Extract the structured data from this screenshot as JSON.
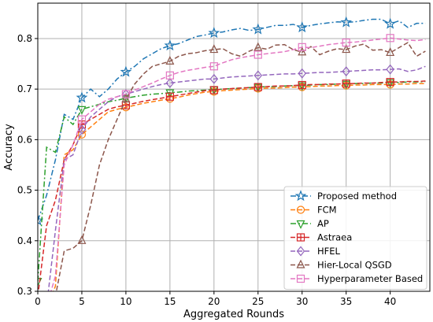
{
  "chart_data": {
    "type": "line",
    "xlabel": "Aggregated Rounds",
    "ylabel": "Accuracy",
    "xlim": [
      0,
      44.5
    ],
    "ylim": [
      0.3,
      0.87
    ],
    "xticks": [
      0,
      5,
      10,
      15,
      20,
      25,
      30,
      35,
      40
    ],
    "yticks": [
      0.3,
      0.4,
      0.5,
      0.6,
      0.7,
      0.8
    ],
    "grid": true,
    "legend_position": "lower-right",
    "series": [
      {
        "name": "Proposed method",
        "color": "#1f77b4",
        "dash": "dashdot",
        "marker": "star",
        "x": [
          0,
          1,
          2,
          3,
          4,
          5,
          6,
          7,
          8,
          9,
          10,
          11,
          12,
          13,
          14,
          15,
          16,
          17,
          18,
          19,
          20,
          21,
          22,
          23,
          24,
          25,
          26,
          27,
          28,
          29,
          30,
          31,
          32,
          33,
          34,
          35,
          36,
          37,
          38,
          39,
          40,
          41,
          42,
          43,
          44
        ],
        "y": [
          0.44,
          0.49,
          0.56,
          0.65,
          0.64,
          0.683,
          0.7,
          0.685,
          0.7,
          0.72,
          0.734,
          0.745,
          0.76,
          0.77,
          0.78,
          0.786,
          0.79,
          0.797,
          0.804,
          0.807,
          0.811,
          0.813,
          0.817,
          0.82,
          0.816,
          0.818,
          0.822,
          0.826,
          0.826,
          0.828,
          0.822,
          0.826,
          0.829,
          0.831,
          0.833,
          0.832,
          0.833,
          0.836,
          0.838,
          0.838,
          0.829,
          0.835,
          0.822,
          0.83,
          0.83
        ]
      },
      {
        "name": "FCM",
        "color": "#ff7f0e",
        "dash": "dashed",
        "marker": "circle",
        "x": [
          0,
          1,
          2,
          3,
          4,
          5,
          6,
          7,
          8,
          9,
          10,
          11,
          12,
          13,
          14,
          15,
          16,
          17,
          18,
          19,
          20,
          21,
          22,
          23,
          24,
          25,
          26,
          27,
          28,
          29,
          30,
          31,
          32,
          33,
          34,
          35,
          36,
          37,
          38,
          39,
          40,
          41,
          42,
          43,
          44
        ],
        "y": [
          0.27,
          0.27,
          0.31,
          0.57,
          0.58,
          0.61,
          0.625,
          0.64,
          0.655,
          0.66,
          0.664,
          0.668,
          0.672,
          0.675,
          0.678,
          0.681,
          0.684,
          0.688,
          0.691,
          0.694,
          0.695,
          0.697,
          0.698,
          0.699,
          0.7,
          0.701,
          0.702,
          0.702,
          0.703,
          0.704,
          0.704,
          0.705,
          0.706,
          0.706,
          0.707,
          0.707,
          0.708,
          0.708,
          0.709,
          0.709,
          0.709,
          0.71,
          0.71,
          0.711,
          0.711
        ]
      },
      {
        "name": "AP",
        "color": "#2ca02c",
        "dash": "dashdot",
        "marker": "triangle-down",
        "x": [
          0,
          1,
          2,
          3,
          4,
          5,
          6,
          7,
          8,
          9,
          10,
          11,
          12,
          13,
          14,
          15,
          16,
          17,
          18,
          19,
          20,
          21,
          22,
          23,
          24,
          25,
          26,
          27,
          28,
          29,
          30,
          31,
          32,
          33,
          34,
          35,
          36,
          37,
          38,
          39,
          40,
          41,
          42,
          43,
          44
        ],
        "y": [
          0.32,
          0.585,
          0.575,
          0.645,
          0.63,
          0.66,
          0.665,
          0.67,
          0.675,
          0.678,
          0.682,
          0.685,
          0.688,
          0.69,
          0.691,
          0.693,
          0.694,
          0.696,
          0.697,
          0.698,
          0.699,
          0.7,
          0.701,
          0.702,
          0.703,
          0.704,
          0.705,
          0.705,
          0.706,
          0.707,
          0.707,
          0.708,
          0.709,
          0.709,
          0.71,
          0.71,
          0.711,
          0.711,
          0.712,
          0.712,
          0.713,
          0.713,
          0.714,
          0.714,
          0.715
        ]
      },
      {
        "name": "Astraea",
        "color": "#d62728",
        "dash": "dashed",
        "marker": "plus-square",
        "x": [
          0,
          1,
          2,
          3,
          4,
          5,
          6,
          7,
          8,
          9,
          10,
          11,
          12,
          13,
          14,
          15,
          16,
          17,
          18,
          19,
          20,
          21,
          22,
          23,
          24,
          25,
          26,
          27,
          28,
          29,
          30,
          31,
          32,
          33,
          34,
          35,
          36,
          37,
          38,
          39,
          40,
          41,
          42,
          43,
          44
        ],
        "y": [
          0.29,
          0.43,
          0.48,
          0.56,
          0.59,
          0.63,
          0.64,
          0.65,
          0.66,
          0.665,
          0.668,
          0.672,
          0.676,
          0.679,
          0.682,
          0.685,
          0.688,
          0.691,
          0.694,
          0.697,
          0.698,
          0.7,
          0.701,
          0.702,
          0.703,
          0.704,
          0.705,
          0.706,
          0.706,
          0.707,
          0.708,
          0.709,
          0.709,
          0.71,
          0.71,
          0.711,
          0.711,
          0.712,
          0.712,
          0.713,
          0.714,
          0.714,
          0.715,
          0.715,
          0.716
        ]
      },
      {
        "name": "HFEL",
        "color": "#9467bd",
        "dash": "dashed",
        "marker": "diamond",
        "x": [
          0,
          1,
          2,
          3,
          4,
          5,
          6,
          7,
          8,
          9,
          10,
          11,
          12,
          13,
          14,
          15,
          16,
          17,
          18,
          19,
          20,
          21,
          22,
          23,
          24,
          25,
          26,
          27,
          28,
          29,
          30,
          31,
          32,
          33,
          34,
          35,
          36,
          37,
          38,
          39,
          40,
          41,
          42,
          43,
          44
        ],
        "y": [
          0.27,
          0.27,
          0.42,
          0.56,
          0.57,
          0.62,
          0.645,
          0.66,
          0.675,
          0.685,
          0.69,
          0.695,
          0.7,
          0.705,
          0.709,
          0.712,
          0.714,
          0.716,
          0.718,
          0.72,
          0.72,
          0.722,
          0.724,
          0.725,
          0.726,
          0.727,
          0.728,
          0.729,
          0.73,
          0.73,
          0.731,
          0.732,
          0.733,
          0.733,
          0.734,
          0.735,
          0.736,
          0.737,
          0.738,
          0.738,
          0.739,
          0.74,
          0.735,
          0.738,
          0.745
        ]
      },
      {
        "name": "Hier-Local QSGD",
        "color": "#8c564b",
        "dash": "dashed",
        "marker": "triangle-up",
        "x": [
          0,
          1,
          2,
          3,
          4,
          5,
          6,
          7,
          8,
          9,
          10,
          11,
          12,
          13,
          14,
          15,
          16,
          17,
          18,
          19,
          20,
          21,
          22,
          23,
          24,
          25,
          26,
          27,
          28,
          29,
          30,
          31,
          32,
          33,
          34,
          35,
          36,
          37,
          38,
          39,
          40,
          41,
          42,
          43,
          44
        ],
        "y": [
          0.27,
          0.27,
          0.29,
          0.38,
          0.385,
          0.4,
          0.47,
          0.55,
          0.6,
          0.64,
          0.68,
          0.71,
          0.73,
          0.745,
          0.75,
          0.755,
          0.765,
          0.77,
          0.772,
          0.776,
          0.778,
          0.78,
          0.77,
          0.765,
          0.775,
          0.782,
          0.779,
          0.787,
          0.788,
          0.778,
          0.773,
          0.784,
          0.768,
          0.775,
          0.78,
          0.778,
          0.785,
          0.789,
          0.777,
          0.778,
          0.772,
          0.782,
          0.792,
          0.765,
          0.775
        ]
      },
      {
        "name": "Hyperparameter Based",
        "color": "#e377c2",
        "dash": "dashed",
        "marker": "square",
        "x": [
          0,
          1,
          2,
          3,
          4,
          5,
          6,
          7,
          8,
          9,
          10,
          11,
          12,
          13,
          14,
          15,
          16,
          17,
          18,
          19,
          20,
          21,
          22,
          23,
          24,
          25,
          26,
          27,
          28,
          29,
          30,
          31,
          32,
          33,
          34,
          35,
          36,
          37,
          38,
          39,
          40,
          41,
          42,
          43,
          44
        ],
        "y": [
          0.27,
          0.27,
          0.33,
          0.55,
          0.59,
          0.64,
          0.655,
          0.67,
          0.68,
          0.685,
          0.69,
          0.698,
          0.705,
          0.712,
          0.72,
          0.727,
          0.733,
          0.737,
          0.74,
          0.743,
          0.745,
          0.752,
          0.758,
          0.762,
          0.765,
          0.768,
          0.77,
          0.772,
          0.774,
          0.778,
          0.783,
          0.782,
          0.785,
          0.788,
          0.79,
          0.792,
          0.793,
          0.795,
          0.797,
          0.799,
          0.801,
          0.799,
          0.797,
          0.796,
          0.798
        ]
      }
    ]
  }
}
